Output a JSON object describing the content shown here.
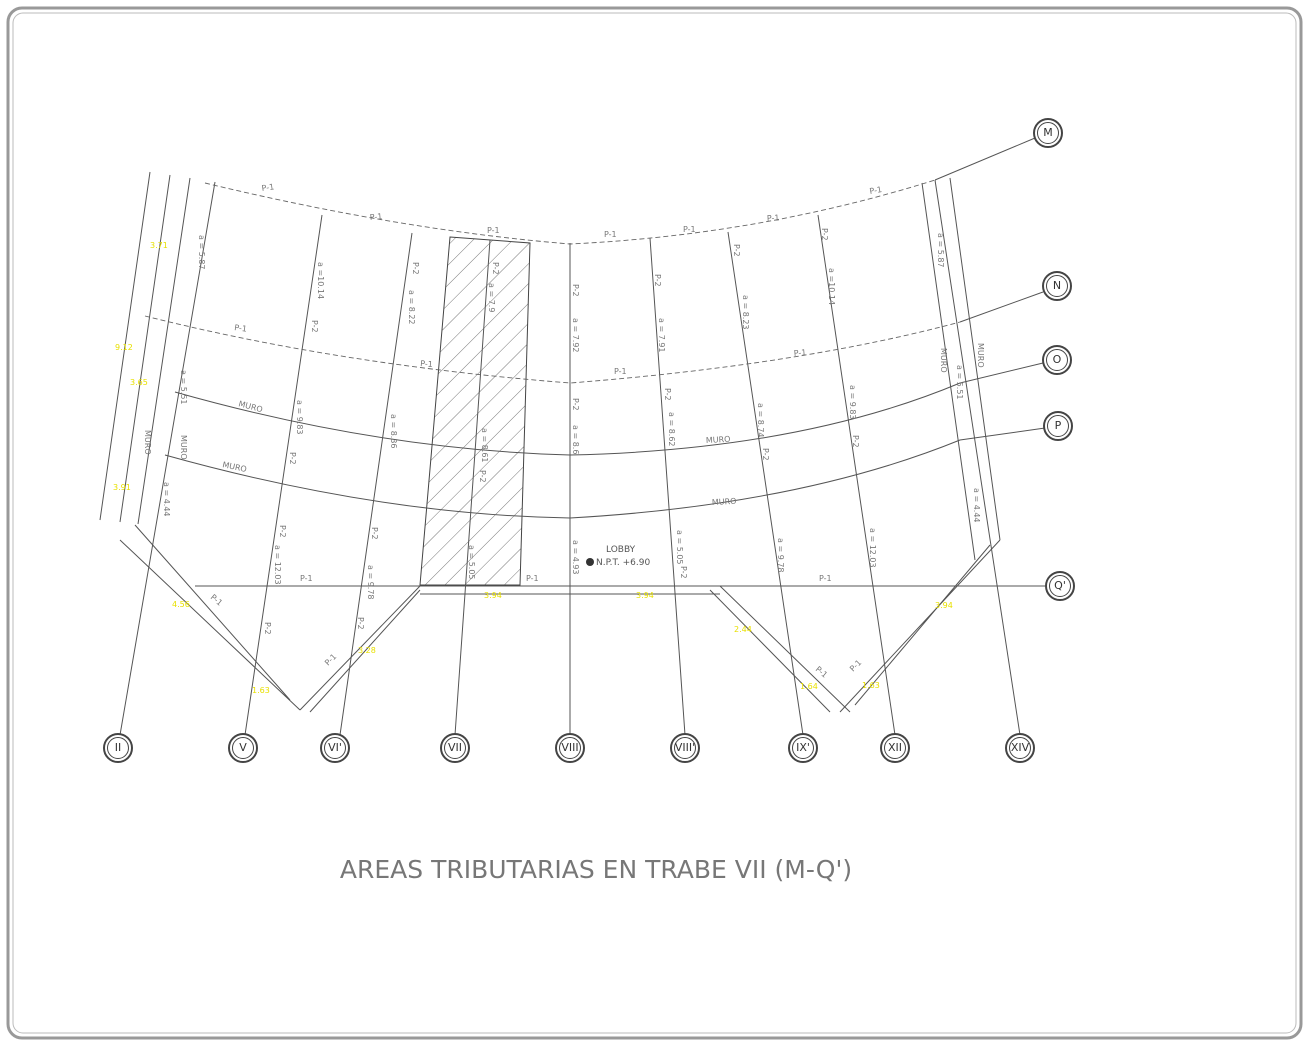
{
  "title": "AREAS TRIBUTARIAS EN TRABE VII (M-Q')",
  "axes": {
    "rows": [
      "M",
      "N",
      "O",
      "P",
      "Q'"
    ],
    "columns": [
      "II",
      "V",
      "VI'",
      "VII",
      "VIII",
      "VIII'",
      "IX'",
      "XII",
      "XIV"
    ]
  },
  "beams": [
    "P-1",
    "P-1",
    "P-1",
    "P-1",
    "P-1",
    "P-1",
    "P-1",
    "P-1",
    "P-1",
    "P-1",
    "P-1",
    "P-1",
    "P-1",
    "P-1",
    "P-1",
    "P-1",
    "P-1",
    "P-1",
    "P-2",
    "P-2",
    "P-2",
    "P-2",
    "P-2",
    "P-2",
    "P-2",
    "P-2",
    "P-2",
    "P-2",
    "P-2",
    "P-2",
    "P-2",
    "P-2",
    "P-2",
    "P-2",
    "P-2",
    "P-2"
  ],
  "walls": [
    "MURO",
    "MURO",
    "MURO",
    "MURO",
    "MURO",
    "MURO",
    "MURO",
    "MURO"
  ],
  "areas": [
    "a = 5.87",
    "a =10.14",
    "a = 8.22",
    "a = 7.9",
    "a = 7.92",
    "a = 7.91",
    "a = 8.23",
    "a =10.14",
    "a = 5.87",
    "a = 5.51",
    "a = 9.83",
    "a = 8.36",
    "a = 8.61",
    "a = 8.6",
    "a = 8.62",
    "a = 8.74",
    "a = 9.83",
    "a = 5.51",
    "a = 4.44",
    "a = 12.03",
    "a = 9.78",
    "a = 5.05",
    "a = 4.93",
    "a = 5.05",
    "a = 9.78",
    "a = 12.03",
    "a = 4.44"
  ],
  "dimensions": [
    "3.71",
    "9.12",
    "3.65",
    "3.91",
    "4.56",
    "1.63",
    "3.28",
    "3.94",
    "3.94",
    "2.44",
    "1.64",
    "1.63",
    "3.94"
  ],
  "room": {
    "name": "LOBBY",
    "level": "N.P.T. +6.90"
  }
}
